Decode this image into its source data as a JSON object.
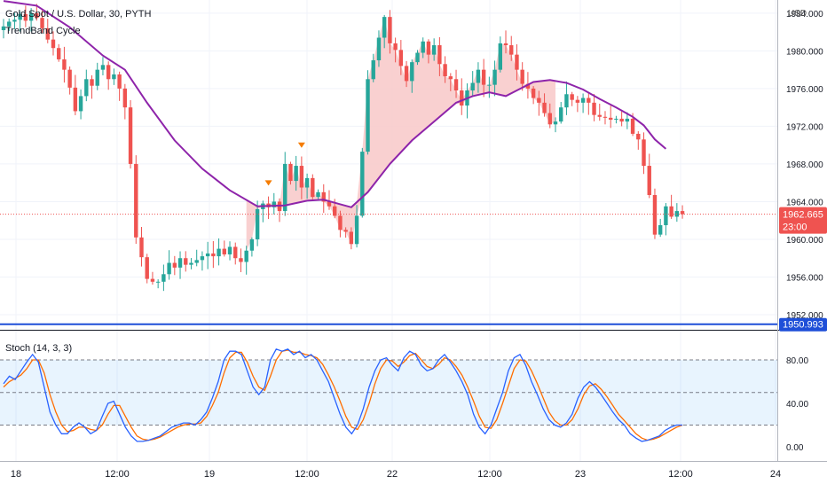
{
  "header": {
    "symbol_title": "Gold Spot / U.S. Dollar, 30, PYTH",
    "indicator_name": "TrendBand Cycle",
    "currency": "USD"
  },
  "price_axis": {
    "ticks": [
      "1984.000",
      "1980.000",
      "1976.000",
      "1972.000",
      "1968.000",
      "1964.000",
      "1960.000",
      "1956.000",
      "1952.000"
    ],
    "tick_values": [
      1984,
      1980,
      1976,
      1972,
      1968,
      1964,
      1960,
      1956,
      1952
    ],
    "current_price": "1962.665",
    "countdown": "23:00",
    "line_label": "1950.993"
  },
  "stoch": {
    "label": "Stoch (14, 3, 3)",
    "ticks": [
      "80.00",
      "40.00",
      "0.00"
    ],
    "tick_values": [
      80,
      40,
      0
    ],
    "levels": [
      80,
      50,
      20
    ]
  },
  "time_axis": {
    "labels": [
      "18",
      "12:00",
      "19",
      "12:00",
      "22",
      "12:00",
      "23",
      "12:00",
      "24"
    ]
  },
  "colors": {
    "up": "#26a69a",
    "down": "#ef5350",
    "trend_line": "#8e24aa",
    "band_fill": "#f8c8c8",
    "hline": "#1e4fd8",
    "stoch_k": "#2962ff",
    "stoch_d": "#ff6d00",
    "marker": "#f57c00"
  },
  "chart_data": {
    "type": "candlestick",
    "title": "Gold Spot / U.S. Dollar, 30, PYTH",
    "ylim": [
      1950.4,
      1985.4
    ],
    "current_price": 1962.665,
    "horizontal_line": 1950.993,
    "close_series": [
      1982.6,
      1983.1,
      1983.3,
      1983.9,
      1983.2,
      1984.0,
      1983.5,
      1982.4,
      1981.2,
      1980.3,
      1979.1,
      1978.0,
      1976.1,
      1973.6,
      1975.2,
      1977.0,
      1976.3,
      1978.0,
      1978.5,
      1977.0,
      1977.5,
      1976.0,
      1974.0,
      1968.0,
      1960.2,
      1958.1,
      1955.8,
      1955.5,
      1955.5,
      1956.3,
      1957.5,
      1957.0,
      1958.0,
      1957.3,
      1957.5,
      1957.8,
      1958.2,
      1958.5,
      1958.2,
      1959.0,
      1958.4,
      1959.2,
      1958.0,
      1957.6,
      1958.8,
      1960.0,
      1963.2,
      1963.8,
      1963.4,
      1964.0,
      1963.0,
      1968.0,
      1966.2,
      1967.8,
      1965.5,
      1966.5,
      1964.5,
      1965.0,
      1964.0,
      1963.5,
      1962.5,
      1961.0,
      1960.8,
      1959.5,
      1962.5,
      1969.3,
      1977.0,
      1979.0,
      1981.4,
      1983.6,
      1980.8,
      1980.1,
      1978.4,
      1976.8,
      1978.8,
      1979.8,
      1981.0,
      1979.6,
      1980.6,
      1978.6,
      1977.3,
      1977.0,
      1975.8,
      1974.2,
      1975.8,
      1976.6,
      1978.0,
      1976.4,
      1976.4,
      1978.0,
      1980.8,
      1980.6,
      1979.6,
      1978.0,
      1976.5,
      1976.0,
      1975.0,
      1974.5,
      1973.4,
      1972.2,
      1972.5,
      1974.0,
      1975.4,
      1974.8,
      1974.5,
      1975.0,
      1974.5,
      1973.2,
      1973.0,
      1972.9,
      1972.7,
      1972.8,
      1972.5,
      1972.8,
      1971.2,
      1970.6,
      1967.8,
      1964.7,
      1960.5,
      1961.5,
      1963.5,
      1962.4,
      1963.0,
      1962.665
    ],
    "trend_line_points": [
      [
        0,
        1985.3
      ],
      [
        6,
        1984.8
      ],
      [
        12,
        1982.5
      ],
      [
        18,
        1979.5
      ],
      [
        22,
        1978.0
      ],
      [
        26,
        1974.5
      ],
      [
        31,
        1970.5
      ],
      [
        36,
        1967.5
      ],
      [
        41,
        1965.2
      ],
      [
        46,
        1963.5
      ],
      [
        51,
        1963.6
      ],
      [
        55,
        1964.1
      ],
      [
        58,
        1964.2
      ],
      [
        63,
        1963.4
      ],
      [
        66,
        1965.0
      ],
      [
        70,
        1968.0
      ],
      [
        74,
        1970.5
      ],
      [
        78,
        1972.5
      ],
      [
        82,
        1974.5
      ],
      [
        85,
        1975.2
      ],
      [
        88,
        1975.6
      ],
      [
        91,
        1975.2
      ],
      [
        93,
        1975.8
      ],
      [
        96,
        1976.7
      ],
      [
        99,
        1976.9
      ],
      [
        102,
        1976.6
      ],
      [
        105,
        1975.9
      ],
      [
        108,
        1974.9
      ],
      [
        111,
        1974.0
      ],
      [
        114,
        1973.0
      ],
      [
        116,
        1972.1
      ],
      [
        118,
        1970.6
      ],
      [
        120,
        1969.6
      ]
    ],
    "markers": [
      {
        "index": 48,
        "value": 1965.8
      },
      {
        "index": 54,
        "value": 1969.8
      }
    ],
    "stoch_levels": [
      80,
      50,
      20
    ],
    "stoch_k": [
      58,
      65,
      62,
      70,
      78,
      85,
      78,
      55,
      32,
      20,
      12,
      12,
      18,
      22,
      18,
      12,
      15,
      28,
      40,
      42,
      30,
      18,
      10,
      5,
      5,
      6,
      8,
      10,
      14,
      18,
      20,
      22,
      22,
      20,
      25,
      32,
      45,
      60,
      80,
      88,
      88,
      85,
      70,
      55,
      48,
      55,
      80,
      90,
      88,
      90,
      85,
      88,
      82,
      85,
      80,
      70,
      60,
      45,
      30,
      18,
      12,
      20,
      35,
      55,
      70,
      80,
      82,
      75,
      70,
      82,
      88,
      85,
      75,
      70,
      72,
      80,
      85,
      78,
      70,
      60,
      48,
      30,
      18,
      12,
      20,
      35,
      50,
      70,
      82,
      85,
      75,
      60,
      48,
      35,
      25,
      20,
      18,
      22,
      30,
      45,
      55,
      60,
      55,
      48,
      40,
      32,
      25,
      20,
      12,
      8,
      5,
      6,
      8,
      10,
      15,
      18,
      20,
      20
    ],
    "stoch_d": [
      55,
      60,
      63,
      66,
      72,
      80,
      80,
      68,
      48,
      32,
      20,
      14,
      15,
      18,
      18,
      16,
      15,
      20,
      30,
      38,
      38,
      28,
      18,
      10,
      7,
      6,
      7,
      9,
      12,
      15,
      18,
      20,
      21,
      21,
      22,
      28,
      38,
      50,
      68,
      82,
      87,
      87,
      78,
      65,
      55,
      52,
      65,
      80,
      88,
      89,
      87,
      87,
      85,
      84,
      82,
      76,
      66,
      55,
      42,
      28,
      18,
      16,
      25,
      40,
      58,
      72,
      80,
      79,
      74,
      78,
      84,
      86,
      80,
      74,
      72,
      76,
      82,
      80,
      74,
      66,
      55,
      42,
      28,
      18,
      17,
      25,
      40,
      56,
      72,
      80,
      79,
      70,
      58,
      45,
      32,
      24,
      20,
      20,
      25,
      35,
      48,
      56,
      58,
      53,
      46,
      38,
      30,
      24,
      18,
      12,
      8,
      6,
      7,
      9,
      12,
      15,
      18,
      20
    ]
  }
}
